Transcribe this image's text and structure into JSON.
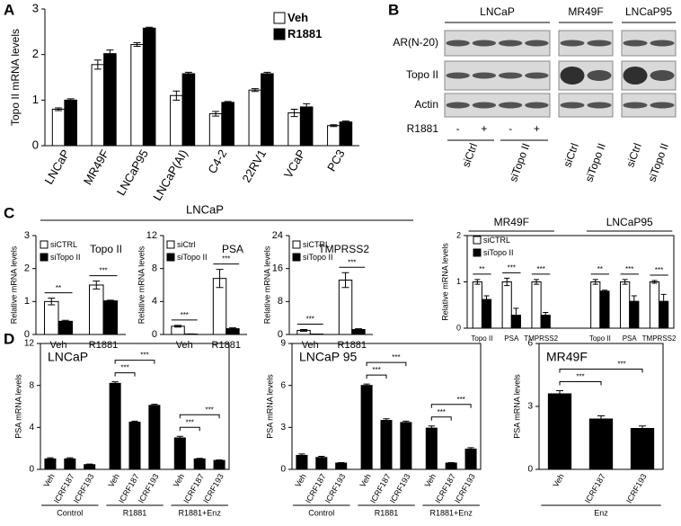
{
  "panel_labels": [
    "A",
    "B",
    "C",
    "D"
  ],
  "c_header": "LNCaP",
  "blot": {
    "groups": [
      "LNCaP",
      "MR49F",
      "LNCaP95"
    ],
    "rows": [
      "AR(N-20)",
      "Topo II",
      "Actin"
    ],
    "treatment": "R1881",
    "treatment_signs": [
      "-",
      "+",
      "-",
      "+"
    ],
    "lanes": [
      "siCtrl",
      "siTopo II",
      "siCtrl",
      "siTopo II",
      "siCtrl",
      "siTopo II"
    ]
  },
  "chart_data": [
    {
      "type": "bar",
      "ylabel": "Topo II mRNA levels",
      "categories": [
        "LNCaP",
        "MR49F",
        "LNCaP95",
        "LNCaP(AI)",
        "C4-2",
        "22RV1",
        "VCaP",
        "PC3"
      ],
      "series": [
        {
          "name": "Veh",
          "color": "#ffffff",
          "values": [
            0.8,
            1.78,
            2.22,
            1.1,
            0.7,
            1.22,
            0.72,
            0.44
          ],
          "errors": [
            0.03,
            0.1,
            0.04,
            0.1,
            0.05,
            0.03,
            0.08,
            0.02
          ]
        },
        {
          "name": "R1881",
          "color": "#000000",
          "values": [
            1.0,
            2.02,
            2.58,
            1.58,
            0.95,
            1.58,
            0.85,
            0.52
          ],
          "errors": [
            0.03,
            0.08,
            0.02,
            0.03,
            0.02,
            0.03,
            0.07,
            0.02
          ]
        }
      ],
      "ylim": [
        0,
        3
      ],
      "yticks": [
        0,
        1,
        2,
        3
      ]
    },
    {
      "type": "bar",
      "title": "Topo II",
      "ylabel": "Relative mRNA levels",
      "categories": [
        "Veh",
        "R1881"
      ],
      "series": [
        {
          "name": "siCTRL",
          "color": "#ffffff",
          "values": [
            1.0,
            1.5
          ],
          "errors": [
            0.1,
            0.12
          ]
        },
        {
          "name": "siTopo II",
          "color": "#000000",
          "values": [
            0.4,
            1.02
          ],
          "errors": [
            0.03,
            0.02
          ]
        }
      ],
      "significance": [
        "**",
        "***"
      ],
      "ylim": [
        0,
        3
      ],
      "yticks": [
        0,
        1,
        2,
        3
      ]
    },
    {
      "type": "bar",
      "title": "PSA",
      "ylabel": "Relative mRNA levels",
      "categories": [
        "Veh",
        "R1881"
      ],
      "series": [
        {
          "name": "siCtrl",
          "color": "#ffffff",
          "values": [
            1.0,
            6.8
          ],
          "errors": [
            0.1,
            1.1
          ]
        },
        {
          "name": "siTopo II",
          "color": "#000000",
          "values": [
            0.05,
            0.7
          ],
          "errors": [
            0.02,
            0.1
          ]
        }
      ],
      "significance": [
        "***",
        "***"
      ],
      "ylim": [
        0,
        12
      ],
      "yticks": [
        0,
        4,
        8,
        12
      ]
    },
    {
      "type": "bar",
      "title": "TMPRSS2",
      "ylabel": "Relative mRNA levels",
      "categories": [
        "Veh",
        "R1881"
      ],
      "series": [
        {
          "name": "siCTRL",
          "color": "#ffffff",
          "values": [
            1.0,
            13.2
          ],
          "errors": [
            0.2,
            1.8
          ]
        },
        {
          "name": "siTopo II",
          "color": "#000000",
          "values": [
            0.1,
            1.2
          ],
          "errors": [
            0.02,
            0.2
          ]
        }
      ],
      "significance": [
        "***",
        "***"
      ],
      "ylim": [
        0,
        24
      ],
      "yticks": [
        0,
        8,
        16,
        24
      ]
    },
    {
      "type": "bar",
      "ylabel": "Relative mRNA levels",
      "groups": [
        "MR49F",
        "LNCaP95"
      ],
      "categories": [
        "Topo II",
        "PSA",
        "TMPRSS2",
        "Topo II",
        "PSA",
        "TMPRSS2"
      ],
      "series": [
        {
          "name": "siCTRL",
          "color": "#ffffff",
          "values": [
            1.0,
            1.0,
            1.0,
            1.0,
            1.0,
            1.0
          ],
          "errors": [
            0.05,
            0.08,
            0.05,
            0.05,
            0.05,
            0.03
          ]
        },
        {
          "name": "siTopo II",
          "color": "#000000",
          "values": [
            0.62,
            0.28,
            0.28,
            0.8,
            0.58,
            0.58
          ],
          "errors": [
            0.08,
            0.15,
            0.06,
            0.02,
            0.12,
            0.15
          ]
        }
      ],
      "significance": [
        "**",
        "***",
        "***",
        "**",
        "***",
        "***"
      ],
      "ylim": [
        0,
        2
      ],
      "yticks": [
        0,
        1,
        2
      ]
    },
    {
      "type": "bar",
      "title": "LNCaP",
      "ylabel": "PSA mRNA levels",
      "groups": [
        "Control",
        "R1881",
        "R1881+Enz"
      ],
      "categories": [
        "Veh",
        "ICRF187",
        "ICRF193",
        "Veh",
        "ICRF187",
        "ICRF193",
        "Veh",
        "ICRF187",
        "ICRF193"
      ],
      "values": [
        1.0,
        1.0,
        0.45,
        8.2,
        4.5,
        6.1,
        3.0,
        1.0,
        0.85
      ],
      "errors": [
        0.1,
        0.1,
        0.05,
        0.15,
        0.1,
        0.1,
        0.15,
        0.05,
        0.05
      ],
      "color": "#000000",
      "brackets": [
        {
          "text": "***",
          "between": [
            3,
            4
          ]
        },
        {
          "text": "***",
          "between": [
            3,
            5
          ]
        },
        {
          "text": "***",
          "between": [
            6,
            7
          ]
        },
        {
          "text": "***",
          "between": [
            6,
            8
          ]
        }
      ],
      "ylim": [
        0,
        12
      ],
      "yticks": [
        0,
        4,
        8,
        12
      ]
    },
    {
      "type": "bar",
      "title": "LNCaP 95",
      "ylabel": "PSA mRNA levels",
      "groups": [
        "Control",
        "R1881",
        "R1881+Enz"
      ],
      "categories": [
        "Veh",
        "ICRF187",
        "ICRF193",
        "Veh",
        "ICRF187",
        "ICRF193",
        "Veh",
        "ICRF187",
        "ICRF193"
      ],
      "values": [
        1.0,
        0.85,
        0.45,
        6.0,
        3.5,
        3.35,
        2.95,
        0.45,
        1.45
      ],
      "errors": [
        0.1,
        0.08,
        0.03,
        0.1,
        0.12,
        0.1,
        0.15,
        0.03,
        0.1
      ],
      "color": "#000000",
      "brackets": [
        {
          "text": "***",
          "between": [
            3,
            4
          ]
        },
        {
          "text": "***",
          "between": [
            3,
            5
          ]
        },
        {
          "text": "***",
          "between": [
            6,
            7
          ]
        },
        {
          "text": "***",
          "between": [
            6,
            8
          ]
        }
      ],
      "ylim": [
        0,
        9
      ],
      "yticks": [
        0,
        3,
        6,
        9
      ]
    },
    {
      "type": "bar",
      "title": "MR49F",
      "ylabel": "PSA mRNA levels",
      "groups": [
        "Enz"
      ],
      "categories": [
        "Veh",
        "ICRF187",
        "ICRF193"
      ],
      "values": [
        3.6,
        2.4,
        1.95
      ],
      "errors": [
        0.15,
        0.15,
        0.12
      ],
      "color": "#000000",
      "brackets": [
        {
          "text": "***",
          "between": [
            0,
            1
          ]
        },
        {
          "text": "***",
          "between": [
            0,
            2
          ]
        }
      ],
      "ylim": [
        0,
        6
      ],
      "yticks": [
        0,
        3,
        6
      ]
    }
  ]
}
